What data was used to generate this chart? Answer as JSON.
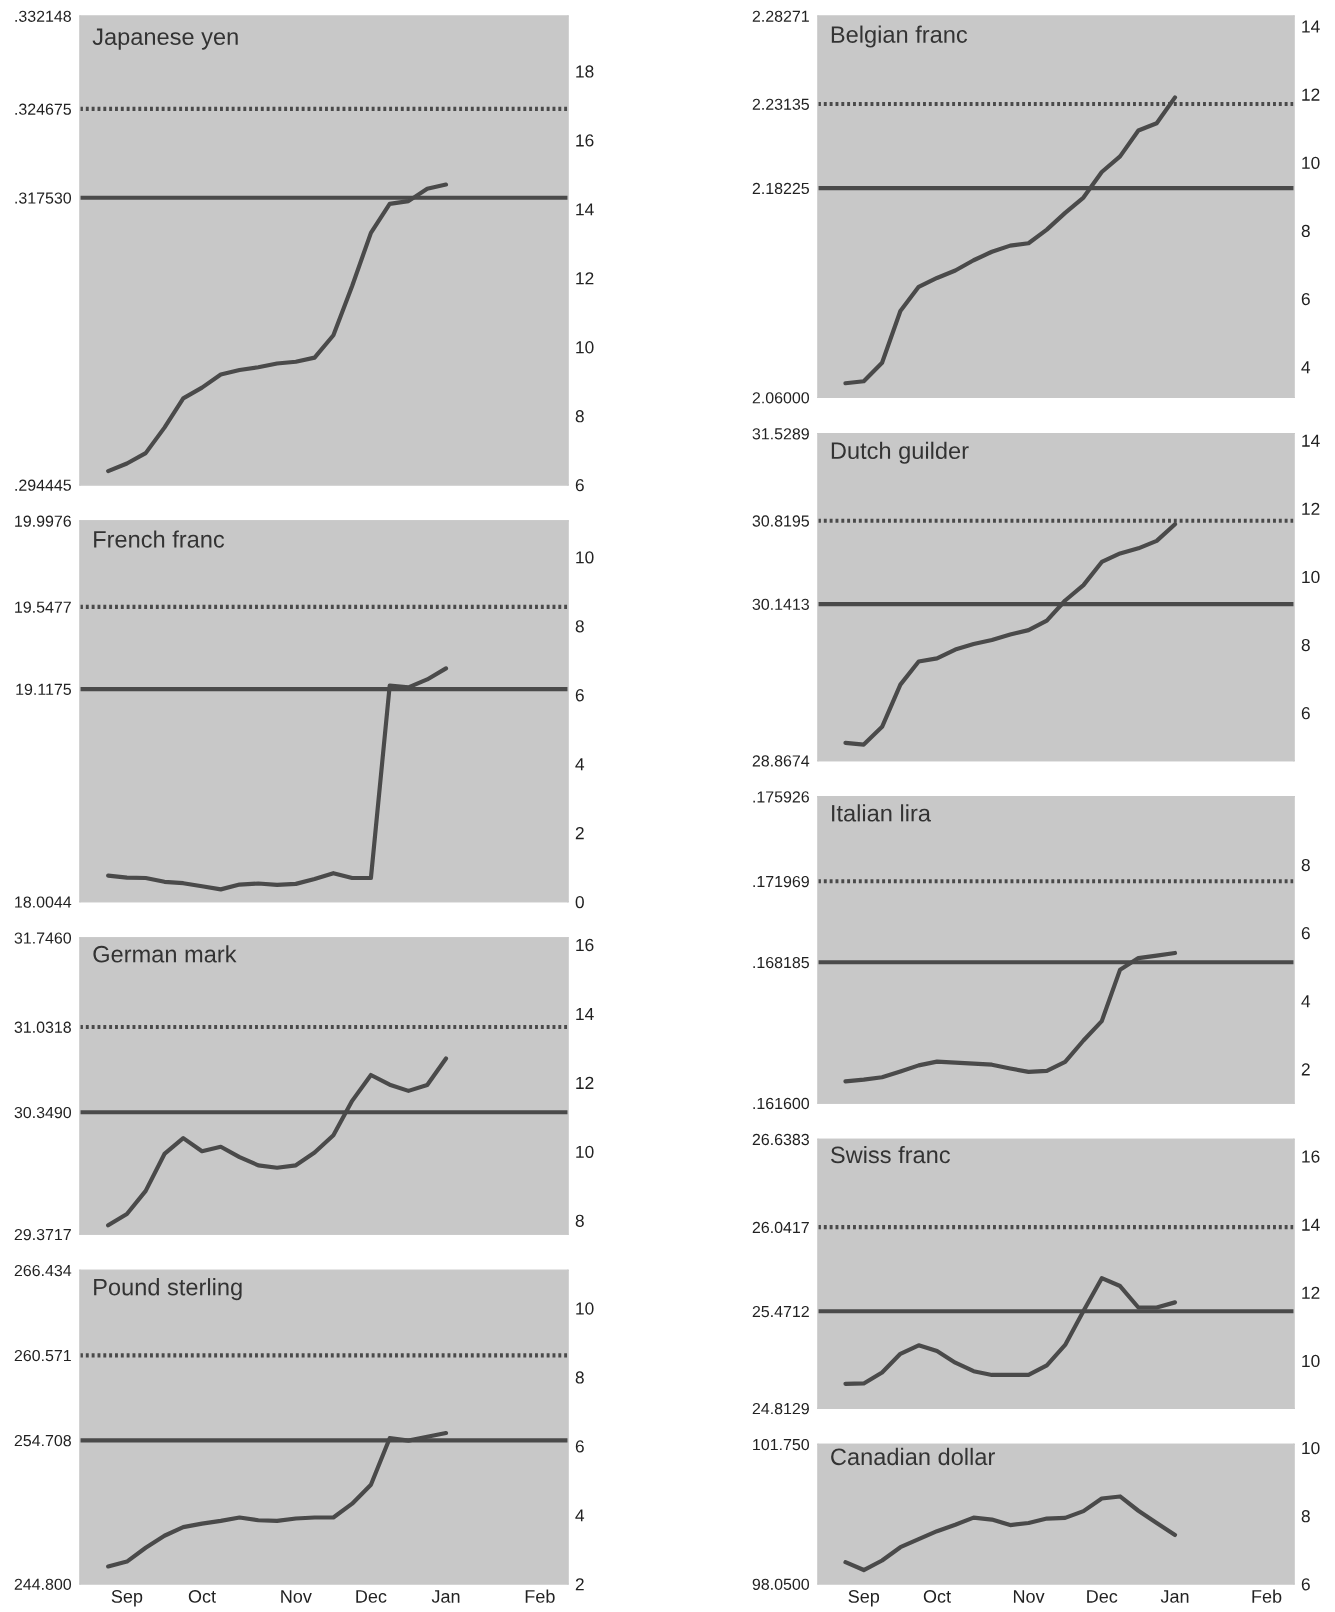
{
  "chart_data": [
    {
      "type": "line",
      "title": "Japanese yen",
      "categories": [
        null,
        null,
        null,
        null,
        null,
        null,
        null,
        null,
        null,
        null,
        null,
        null,
        null,
        null,
        null,
        null,
        null,
        null,
        null,
        null,
        null,
        null,
        null,
        null,
        null,
        null
      ],
      "ylim": [
        0.294445,
        0.332148
      ],
      "yticks": [
        {
          "value": 0.294445,
          "label": ".294445"
        },
        {
          "value": 0.31753,
          "label": ".317530"
        },
        {
          "value": 0.324675,
          "label": ".324675"
        },
        {
          "value": 0.332148,
          "label": ".332148"
        }
      ],
      "y2lim": [
        6,
        19.6
      ],
      "y2ticks": [
        6,
        8,
        10,
        12,
        14,
        16,
        18
      ],
      "ref_lines": [
        {
          "axis": "y",
          "value": 0.31753,
          "color": "#4a4a4a",
          "line_style": "solid"
        },
        {
          "axis": "y",
          "value": 0.324675,
          "color": "#4a4a4a",
          "line_style": "dotted"
        }
      ],
      "series": [
        {
          "axis": "y2",
          "color": "#4a4a4a",
          "values": [
            null,
            6.4,
            6.62,
            6.92,
            7.66,
            8.51,
            8.82,
            9.2,
            9.33,
            9.41,
            9.52,
            9.57,
            9.69,
            10.34,
            11.77,
            13.31,
            14.15,
            14.23,
            14.59,
            14.71,
            null,
            null,
            null,
            null,
            null,
            null
          ]
        }
      ]
    },
    {
      "type": "line",
      "title": "French franc",
      "categories": [
        null,
        null,
        null,
        null,
        null,
        null,
        null,
        null,
        null,
        null,
        null,
        null,
        null,
        null,
        null,
        null,
        null,
        null,
        null,
        null,
        null,
        null,
        null,
        null,
        null,
        null
      ],
      "ylim": [
        18.0044,
        19.9976
      ],
      "yticks": [
        {
          "value": 18.0044,
          "label": "18.0044"
        },
        {
          "value": 19.1175,
          "label": "19.1175"
        },
        {
          "value": 19.5477,
          "label": "19.5477"
        },
        {
          "value": 19.9976,
          "label": "19.9976"
        }
      ],
      "y2lim": [
        0,
        11.05
      ],
      "y2ticks": [
        0,
        2,
        4,
        6,
        8,
        10
      ],
      "ref_lines": [
        {
          "axis": "y",
          "value": 19.1175,
          "color": "#4a4a4a",
          "line_style": "solid"
        },
        {
          "axis": "y",
          "value": 19.5477,
          "color": "#4a4a4a",
          "line_style": "dotted"
        }
      ],
      "series": [
        {
          "axis": "y2",
          "color": "#4a4a4a",
          "values": [
            null,
            0.76,
            0.7,
            0.69,
            0.58,
            0.54,
            0.45,
            0.36,
            0.5,
            0.53,
            0.49,
            0.52,
            0.66,
            0.83,
            0.69,
            0.69,
            6.27,
            6.22,
            6.45,
            6.77,
            null,
            null,
            null,
            null,
            null,
            null
          ]
        }
      ]
    },
    {
      "type": "line",
      "title": "German mark",
      "categories": [
        null,
        null,
        null,
        null,
        null,
        null,
        null,
        null,
        null,
        null,
        null,
        null,
        null,
        null,
        null,
        null,
        null,
        null,
        null,
        null,
        null,
        null,
        null,
        null,
        null,
        null
      ],
      "ylim": [
        29.3717,
        31.746
      ],
      "yticks": [
        {
          "value": 29.3717,
          "label": "29.3717"
        },
        {
          "value": 30.349,
          "label": "30.3490"
        },
        {
          "value": 31.0318,
          "label": "31.0318"
        },
        {
          "value": 31.746,
          "label": "31.7460"
        }
      ],
      "y2lim": [
        7.6,
        16.2
      ],
      "y2ticks": [
        8,
        10,
        12,
        14,
        16
      ],
      "ref_lines": [
        {
          "axis": "y",
          "value": 30.349,
          "color": "#4a4a4a",
          "line_style": "solid"
        },
        {
          "axis": "y",
          "value": 31.0318,
          "color": "#4a4a4a",
          "line_style": "dotted"
        }
      ],
      "series": [
        {
          "axis": "y2",
          "color": "#4a4a4a",
          "values": [
            null,
            7.86,
            8.19,
            8.86,
            9.93,
            10.39,
            10.01,
            10.14,
            9.84,
            9.6,
            9.53,
            9.6,
            9.97,
            10.47,
            11.47,
            12.22,
            11.94,
            11.76,
            11.93,
            12.7,
            null,
            null,
            null,
            null,
            null,
            null
          ]
        }
      ]
    },
    {
      "type": "line",
      "title": "Pound sterling",
      "categories": [
        null,
        null,
        "Sep",
        null,
        null,
        null,
        "Oct",
        null,
        null,
        null,
        null,
        "Nov",
        null,
        null,
        null,
        "Dec",
        null,
        null,
        null,
        "Jan",
        null,
        null,
        null,
        null,
        "Feb",
        null
      ],
      "ylim": [
        244.8,
        266.434
      ],
      "yticks": [
        {
          "value": 244.8,
          "label": "244.800"
        },
        {
          "value": 254.708,
          "label": "254.708"
        },
        {
          "value": 260.571,
          "label": "260.571"
        },
        {
          "value": 266.434,
          "label": "266.434"
        }
      ],
      "y2lim": [
        2,
        11.1
      ],
      "y2ticks": [
        2,
        4,
        6,
        8,
        10
      ],
      "ref_lines": [
        {
          "axis": "y",
          "value": 254.708,
          "color": "#4a4a4a",
          "line_style": "solid"
        },
        {
          "axis": "y",
          "value": 260.571,
          "color": "#4a4a4a",
          "line_style": "dotted"
        }
      ],
      "series": [
        {
          "axis": "y2",
          "color": "#4a4a4a",
          "values": [
            null,
            2.51,
            2.65,
            3.05,
            3.4,
            3.65,
            3.75,
            3.83,
            3.93,
            3.85,
            3.83,
            3.9,
            3.93,
            3.93,
            4.33,
            4.88,
            6.23,
            6.16,
            6.27,
            6.38,
            null,
            null,
            null,
            null,
            null,
            null
          ]
        }
      ]
    },
    {
      "type": "line",
      "title": "Belgian franc",
      "categories": [
        null,
        null,
        null,
        null,
        null,
        null,
        null,
        null,
        null,
        null,
        null,
        null,
        null,
        null,
        null,
        null,
        null,
        null,
        null,
        null,
        null,
        null,
        null,
        null,
        null,
        null
      ],
      "ylim": [
        2.06,
        2.28271
      ],
      "yticks": [
        {
          "value": 2.06,
          "label": "2.06000"
        },
        {
          "value": 2.18225,
          "label": "2.18225"
        },
        {
          "value": 2.23135,
          "label": "2.23135"
        },
        {
          "value": 2.28271,
          "label": "2.28271"
        }
      ],
      "y2lim": [
        3.1,
        14.3
      ],
      "y2ticks": [
        4,
        6,
        8,
        10,
        12,
        14
      ],
      "ref_lines": [
        {
          "axis": "y",
          "value": 2.18225,
          "color": "#4a4a4a",
          "line_style": "solid"
        },
        {
          "axis": "y",
          "value": 2.23135,
          "color": "#4a4a4a",
          "line_style": "dotted"
        }
      ],
      "series": [
        {
          "axis": "y2",
          "color": "#4a4a4a",
          "values": [
            null,
            3.52,
            3.58,
            4.12,
            5.64,
            6.35,
            6.61,
            6.83,
            7.13,
            7.38,
            7.56,
            7.63,
            8.03,
            8.52,
            8.97,
            9.72,
            10.18,
            10.94,
            11.15,
            11.91,
            null,
            null,
            null,
            null,
            null,
            null
          ]
        }
      ]
    },
    {
      "type": "line",
      "title": "Dutch guilder",
      "categories": [
        null,
        null,
        null,
        null,
        null,
        null,
        null,
        null,
        null,
        null,
        null,
        null,
        null,
        null,
        null,
        null,
        null,
        null,
        null,
        null,
        null,
        null,
        null,
        null,
        null,
        null
      ],
      "ylim": [
        28.8674,
        31.5289
      ],
      "yticks": [
        {
          "value": 28.8674,
          "label": "28.8674"
        },
        {
          "value": 30.1413,
          "label": "30.1413"
        },
        {
          "value": 30.8195,
          "label": "30.8195"
        },
        {
          "value": 31.5289,
          "label": "31.5289"
        }
      ],
      "y2lim": [
        4.6,
        14.2
      ],
      "y2ticks": [
        6,
        8,
        10,
        12,
        14
      ],
      "ref_lines": [
        {
          "axis": "y",
          "value": 30.1413,
          "color": "#4a4a4a",
          "line_style": "solid"
        },
        {
          "axis": "y",
          "value": 30.8195,
          "color": "#4a4a4a",
          "line_style": "dotted"
        }
      ],
      "series": [
        {
          "axis": "y2",
          "color": "#4a4a4a",
          "values": [
            null,
            5.12,
            5.07,
            5.59,
            6.83,
            7.51,
            7.6,
            7.86,
            8.02,
            8.14,
            8.3,
            8.43,
            8.71,
            9.3,
            9.75,
            10.43,
            10.68,
            10.83,
            11.05,
            11.54,
            null,
            null,
            null,
            null,
            null,
            null
          ]
        }
      ]
    },
    {
      "type": "line",
      "title": "Italian lira",
      "categories": [
        null,
        null,
        null,
        null,
        null,
        null,
        null,
        null,
        null,
        null,
        null,
        null,
        null,
        null,
        null,
        null,
        null,
        null,
        null,
        null,
        null,
        null,
        null,
        null,
        null,
        null
      ],
      "ylim": [
        0.1616,
        0.175926
      ],
      "yticks": [
        {
          "value": 0.1616,
          "label": ".161600"
        },
        {
          "value": 0.168185,
          "label": ".168185"
        },
        {
          "value": 0.171969,
          "label": ".171969"
        },
        {
          "value": 0.175926,
          "label": ".175926"
        }
      ],
      "y2lim": [
        1,
        10
      ],
      "y2ticks": [
        2,
        4,
        6,
        8
      ],
      "ref_lines": [
        {
          "axis": "y",
          "value": 0.168185,
          "color": "#4a4a4a",
          "line_style": "solid"
        },
        {
          "axis": "y",
          "value": 0.171969,
          "color": "#4a4a4a",
          "line_style": "dotted"
        }
      ],
      "series": [
        {
          "axis": "y2",
          "color": "#4a4a4a",
          "values": [
            null,
            1.64,
            1.69,
            1.76,
            1.93,
            2.11,
            2.22,
            2.19,
            2.16,
            2.13,
            2.02,
            1.92,
            1.95,
            2.21,
            2.84,
            3.41,
            4.92,
            5.26,
            5.33,
            5.41,
            null,
            null,
            null,
            null,
            null,
            null
          ]
        }
      ]
    },
    {
      "type": "line",
      "title": "Swiss franc",
      "categories": [
        null,
        null,
        null,
        null,
        null,
        null,
        null,
        null,
        null,
        null,
        null,
        null,
        null,
        null,
        null,
        null,
        null,
        null,
        null,
        null,
        null,
        null,
        null,
        null,
        null,
        null
      ],
      "ylim": [
        24.8129,
        26.6383
      ],
      "yticks": [
        {
          "value": 24.8129,
          "label": "24.8129"
        },
        {
          "value": 25.4712,
          "label": "25.4712"
        },
        {
          "value": 26.0417,
          "label": "26.0417"
        },
        {
          "value": 26.6383,
          "label": "26.6383"
        }
      ],
      "y2lim": [
        8.6,
        16.5
      ],
      "y2ticks": [
        10,
        12,
        14,
        16
      ],
      "ref_lines": [
        {
          "axis": "y",
          "value": 25.4712,
          "color": "#4a4a4a",
          "line_style": "solid"
        },
        {
          "axis": "y",
          "value": 26.0417,
          "color": "#4a4a4a",
          "line_style": "dotted"
        }
      ],
      "series": [
        {
          "axis": "y2",
          "color": "#4a4a4a",
          "values": [
            null,
            9.32,
            9.33,
            9.65,
            10.2,
            10.45,
            10.28,
            9.94,
            9.69,
            9.58,
            9.58,
            9.58,
            9.86,
            10.46,
            11.46,
            12.42,
            12.19,
            11.56,
            11.56,
            11.71,
            null,
            null,
            null,
            null,
            null,
            null
          ]
        }
      ]
    },
    {
      "type": "line",
      "title": "Canadian dollar",
      "categories": [
        null,
        null,
        "Sep",
        null,
        null,
        null,
        "Oct",
        null,
        null,
        null,
        null,
        "Nov",
        null,
        null,
        null,
        "Dec",
        null,
        null,
        null,
        "Jan",
        null,
        null,
        null,
        null,
        "Feb",
        null
      ],
      "ylim": [
        98.05,
        101.75
      ],
      "yticks": [
        {
          "value": 98.05,
          "label": "98.0500"
        },
        {
          "value": 101.75,
          "label": "101.750"
        }
      ],
      "y2lim": [
        6,
        10.1
      ],
      "y2ticks": [
        6,
        8,
        10
      ],
      "series": [
        {
          "axis": "y2",
          "color": "#4a4a4a",
          "values": [
            null,
            6.64,
            6.41,
            6.69,
            7.08,
            7.32,
            7.55,
            7.74,
            7.95,
            7.89,
            7.73,
            7.79,
            7.92,
            7.94,
            8.14,
            8.51,
            8.57,
            8.15,
            7.79,
            7.44,
            null,
            null,
            null,
            null,
            null,
            null
          ]
        }
      ]
    }
  ]
}
